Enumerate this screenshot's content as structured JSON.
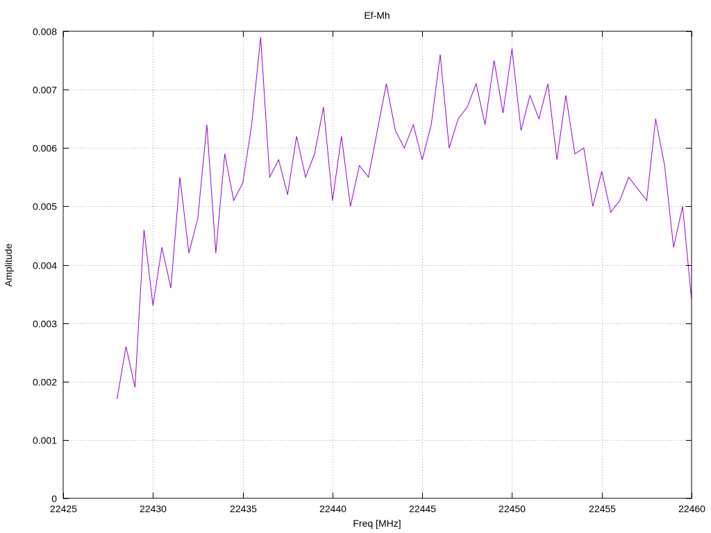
{
  "chart_data": {
    "type": "line",
    "title": "Ef-Mh",
    "xlabel": "Freq [MHz]",
    "ylabel": "Amplitude",
    "xlim": [
      22425,
      22460
    ],
    "ylim": [
      0,
      0.008
    ],
    "xticks": [
      22425,
      22430,
      22435,
      22440,
      22445,
      22450,
      22455,
      22460
    ],
    "xtick_labels": [
      "22425",
      "22430",
      "22435",
      "22440",
      "22445",
      "22450",
      "22455",
      "22460"
    ],
    "yticks": [
      0,
      0.001,
      0.002,
      0.003,
      0.004,
      0.005,
      0.006,
      0.007,
      0.008
    ],
    "ytick_labels": [
      "0",
      "0.001",
      "0.002",
      "0.003",
      "0.004",
      "0.005",
      "0.006",
      "0.007",
      "0.008"
    ],
    "grid": true,
    "line_color": "#9400d3",
    "series": [
      {
        "x": [
          22428.0,
          22428.5,
          22429.0,
          22429.5,
          22430.0,
          22430.5,
          22431.0,
          22431.5,
          22432.0,
          22432.5,
          22433.0,
          22433.5,
          22434.0,
          22434.5,
          22435.0,
          22435.5,
          22436.0,
          22436.5,
          22437.0,
          22437.5,
          22438.0,
          22438.5,
          22439.0,
          22439.5,
          22440.0,
          22440.5,
          22441.0,
          22441.5,
          22442.0,
          22442.5,
          22443.0,
          22443.5,
          22444.0,
          22444.5,
          22445.0,
          22445.5,
          22446.0,
          22446.5,
          22447.0,
          22447.5,
          22448.0,
          22448.5,
          22449.0,
          22449.5,
          22450.0,
          22450.5,
          22451.0,
          22451.5,
          22452.0,
          22452.5,
          22453.0,
          22453.5,
          22454.0,
          22454.5,
          22455.0,
          22455.5,
          22456.0,
          22456.5,
          22457.0,
          22457.5,
          22458.0,
          22458.5,
          22459.0,
          22459.5,
          22460.0
        ],
        "y": [
          0.0017,
          0.0026,
          0.0019,
          0.0046,
          0.0033,
          0.0043,
          0.0036,
          0.0055,
          0.0042,
          0.0048,
          0.0064,
          0.0042,
          0.0059,
          0.0051,
          0.0054,
          0.0064,
          0.0079,
          0.0055,
          0.0058,
          0.0052,
          0.0062,
          0.0055,
          0.0059,
          0.0067,
          0.0051,
          0.0062,
          0.005,
          0.0057,
          0.0055,
          0.0063,
          0.0071,
          0.0063,
          0.006,
          0.0064,
          0.0058,
          0.0064,
          0.0076,
          0.006,
          0.0065,
          0.0067,
          0.0071,
          0.0064,
          0.0075,
          0.0066,
          0.0077,
          0.0063,
          0.0069,
          0.0065,
          0.0071,
          0.0058,
          0.0069,
          0.0059,
          0.006,
          0.005,
          0.0056,
          0.0049,
          0.0051,
          0.0055,
          0.0053,
          0.0051,
          0.0065,
          0.0057,
          0.0043,
          0.005,
          0.0034
        ]
      }
    ]
  }
}
